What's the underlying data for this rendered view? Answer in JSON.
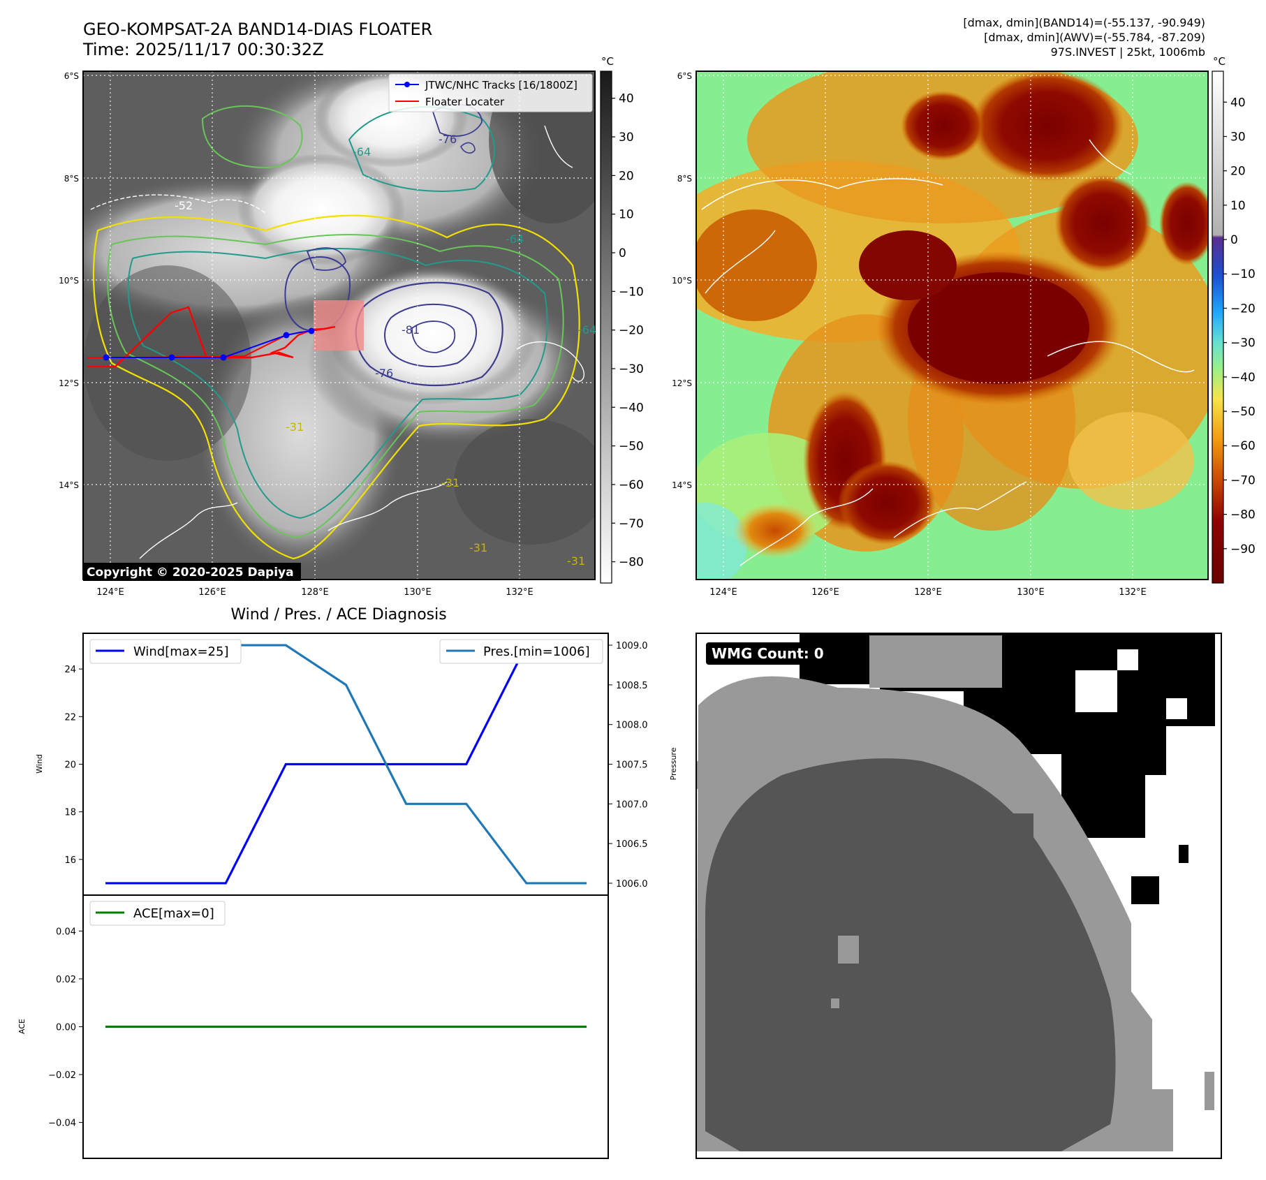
{
  "header": {
    "title_line1": "GEO-KOMPSAT-2A BAND14-DIAS FLOATER",
    "title_line2": "Time: 2025/11/17 00:30:32Z",
    "info_line1": "[dmax, dmin](BAND14)=(-55.137, -90.949)",
    "info_line2": "[dmax, dmin](AWV)=(-55.784, -87.209)",
    "info_line3": "97S.INVEST | 25kt, 1006mb"
  },
  "map_panel_left": {
    "lat_labels": [
      "6°S",
      "8°S",
      "10°S",
      "12°S",
      "14°S"
    ],
    "lon_labels": [
      "124°E",
      "126°E",
      "128°E",
      "130°E",
      "132°E"
    ],
    "legend": {
      "track_label": "JTWC/NHC Tracks [16/1800Z]",
      "floater_label": "Floater Locater",
      "track_color": "#0000ff",
      "floater_color": "#ff0000"
    },
    "contour_labels": [
      "-64",
      "-76",
      "-81",
      "-76",
      "-52",
      "-64",
      "-31",
      "-31",
      "-31",
      "-31",
      "-64"
    ],
    "copyright": "Copyright © 2020-2025 Dapiya",
    "colorbar": {
      "unit": "°C",
      "ticks": [
        "40",
        "30",
        "20",
        "10",
        "0",
        "−10",
        "−20",
        "−30",
        "−40",
        "−50",
        "−60",
        "−70",
        "−80"
      ]
    }
  },
  "map_panel_right": {
    "lat_labels": [
      "6°S",
      "8°S",
      "10°S",
      "12°S",
      "14°S"
    ],
    "lon_labels": [
      "124°E",
      "126°E",
      "128°E",
      "130°E",
      "132°E"
    ],
    "colorbar": {
      "unit": "°C",
      "ticks": [
        "40",
        "30",
        "20",
        "10",
        "0",
        "−10",
        "−20",
        "−30",
        "−40",
        "−50",
        "−60",
        "−70",
        "−80",
        "−90"
      ]
    }
  },
  "diagnosis": {
    "title": "Wind / Pres. / ACE Diagnosis",
    "wind_ylabel": "Wind",
    "pres_ylabel": "Pressure",
    "ace_ylabel": "ACE",
    "wind_legend": "Wind[max=25]",
    "pres_legend": "Pres.[min=1006]",
    "ace_legend": "ACE[max=0]",
    "wind_ticks": [
      "24",
      "22",
      "20",
      "18",
      "16"
    ],
    "pres_ticks": [
      "1009.0",
      "1008.5",
      "1008.0",
      "1007.5",
      "1007.0",
      "1006.5",
      "1006.0"
    ],
    "ace_ticks": [
      "0.04",
      "0.02",
      "0.00",
      "−0.02",
      "−0.04"
    ]
  },
  "wmg": {
    "label": "WMG Count: 0"
  },
  "chart_data": [
    {
      "type": "line",
      "title": "Wind / Pres. / ACE Diagnosis",
      "x": [
        0,
        1,
        2,
        3,
        4,
        5,
        6,
        7,
        8
      ],
      "series": [
        {
          "name": "Wind[max=25]",
          "axis": "left",
          "color": "#0000ff",
          "values": [
            15,
            15,
            15,
            20,
            20,
            20,
            20,
            25,
            25
          ]
        },
        {
          "name": "Pres.[min=1006]",
          "axis": "right",
          "color": "#1f77b4",
          "values": [
            1009,
            1009,
            1009,
            1009,
            1008.5,
            1007,
            1007,
            1006,
            1006
          ]
        }
      ],
      "ylabel": "Wind",
      "ylim": [
        14.5,
        25.5
      ],
      "y2label": "Pressure",
      "y2lim": [
        1005.85,
        1009.15
      ]
    },
    {
      "type": "line",
      "x": [
        0,
        1,
        2,
        3,
        4,
        5,
        6,
        7,
        8
      ],
      "series": [
        {
          "name": "ACE[max=0]",
          "color": "#008000",
          "values": [
            0,
            0,
            0,
            0,
            0,
            0,
            0,
            0,
            0
          ]
        }
      ],
      "ylabel": "ACE",
      "ylim": [
        -0.055,
        0.055
      ]
    }
  ]
}
